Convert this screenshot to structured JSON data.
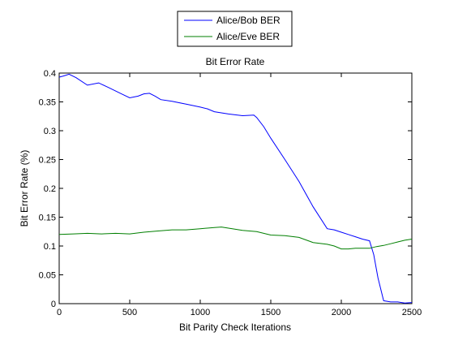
{
  "chart_data": {
    "type": "line",
    "title": "Bit Error Rate",
    "xlabel": "Bit Parity Check Iterations",
    "ylabel": "Bit Error Rate (%)",
    "xlim": [
      0,
      2500
    ],
    "ylim": [
      0,
      0.4
    ],
    "x_ticks": [
      0,
      500,
      1000,
      1500,
      2000,
      2500
    ],
    "x_tick_labels": [
      "0",
      "500",
      "1000",
      "1500",
      "2000",
      "2500"
    ],
    "y_ticks": [
      0,
      0.05,
      0.1,
      0.15,
      0.2,
      0.25,
      0.3,
      0.35,
      0.4
    ],
    "y_tick_labels": [
      "0",
      "0.05",
      "0.1",
      "0.15",
      "0.2",
      "0.25",
      "0.3",
      "0.35",
      "0.4"
    ],
    "grid": false,
    "legend_position": "top-center-outside",
    "series": [
      {
        "name": "Alice/Bob BER",
        "color": "#0000ff",
        "x": [
          0,
          30,
          70,
          120,
          200,
          280,
          350,
          450,
          500,
          560,
          600,
          640,
          680,
          720,
          800,
          900,
          1000,
          1050,
          1100,
          1200,
          1300,
          1380,
          1400,
          1450,
          1500,
          1600,
          1700,
          1800,
          1900,
          1950,
          2000,
          2050,
          2100,
          2150,
          2200,
          2230,
          2260,
          2300,
          2350,
          2400,
          2450,
          2500
        ],
        "values": [
          0.393,
          0.395,
          0.398,
          0.392,
          0.379,
          0.383,
          0.375,
          0.363,
          0.357,
          0.36,
          0.364,
          0.365,
          0.36,
          0.354,
          0.351,
          0.346,
          0.341,
          0.338,
          0.333,
          0.329,
          0.326,
          0.327,
          0.323,
          0.307,
          0.287,
          0.25,
          0.212,
          0.168,
          0.13,
          0.128,
          0.124,
          0.12,
          0.116,
          0.112,
          0.109,
          0.085,
          0.045,
          0.005,
          0.003,
          0.003,
          0.001,
          0.002
        ]
      },
      {
        "name": "Alice/Eve BER",
        "color": "#007f00",
        "x": [
          0,
          100,
          200,
          300,
          400,
          500,
          600,
          700,
          800,
          900,
          1000,
          1100,
          1150,
          1200,
          1300,
          1400,
          1500,
          1600,
          1700,
          1800,
          1900,
          1950,
          2000,
          2050,
          2100,
          2150,
          2200,
          2250,
          2300,
          2350,
          2400,
          2450,
          2500
        ],
        "values": [
          0.12,
          0.121,
          0.122,
          0.121,
          0.122,
          0.121,
          0.124,
          0.126,
          0.128,
          0.128,
          0.13,
          0.132,
          0.133,
          0.131,
          0.127,
          0.125,
          0.119,
          0.118,
          0.115,
          0.106,
          0.103,
          0.1,
          0.095,
          0.095,
          0.096,
          0.096,
          0.096,
          0.099,
          0.101,
          0.104,
          0.107,
          0.11,
          0.112
        ]
      }
    ]
  }
}
